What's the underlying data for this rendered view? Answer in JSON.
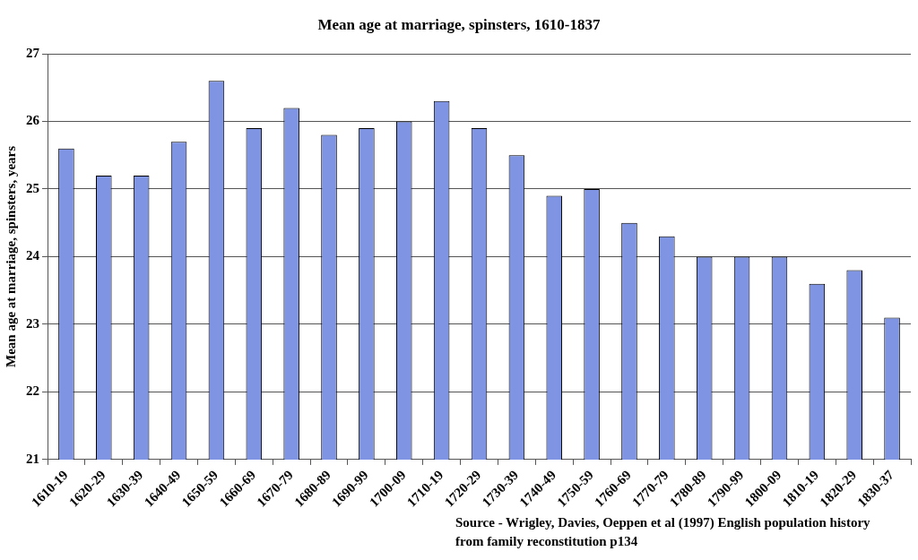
{
  "chart_data": {
    "type": "bar",
    "title": "Mean age at marriage, spinsters, 1610-1837",
    "ylabel": "Mean age at marriage, spinsters, years",
    "categories": [
      "1610-19",
      "1620-29",
      "1630-39",
      "1640-49",
      "1650-59",
      "1660-69",
      "1670-79",
      "1680-89",
      "1690-99",
      "1700-09",
      "1710-19",
      "1720-29",
      "1730-39",
      "1740-49",
      "1750-59",
      "1760-69",
      "1770-79",
      "1780-89",
      "1790-99",
      "1800-09",
      "1810-19",
      "1820-29",
      "1830-37"
    ],
    "values": [
      25.6,
      25.2,
      25.2,
      25.7,
      26.6,
      25.9,
      26.2,
      25.8,
      25.9,
      26.0,
      26.3,
      25.9,
      25.5,
      24.9,
      25.0,
      24.5,
      24.3,
      24.0,
      24.0,
      24.0,
      23.6,
      23.8,
      23.1
    ],
    "color": "#7f94e2",
    "ylim": [
      21,
      27
    ],
    "yticks": [
      21,
      22,
      23,
      24,
      25,
      26,
      27
    ],
    "grid": "y",
    "annotations": [
      "Source - Wrigley, Davies, Oeppen et al (1997) English population history from family reconstitution p134"
    ]
  }
}
